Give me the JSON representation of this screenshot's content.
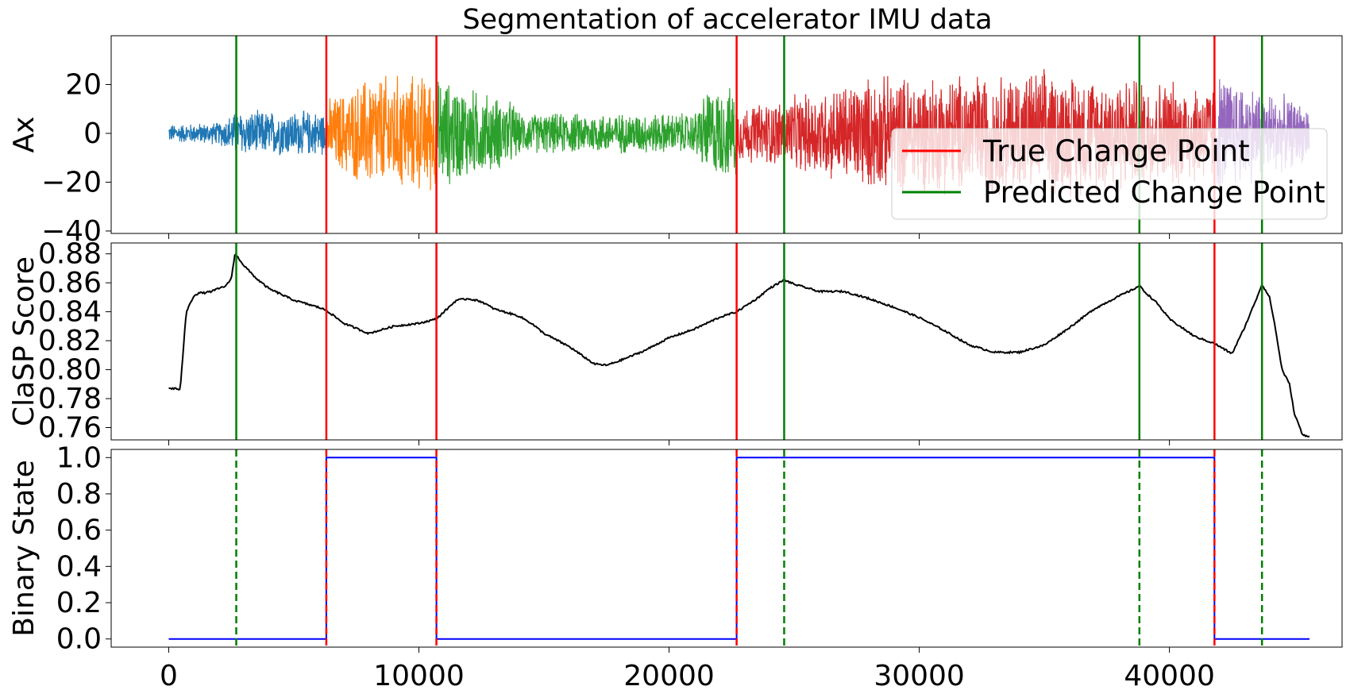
{
  "chart_data": [
    {
      "type": "line",
      "title": "Segmentation of accelerator IMU data",
      "ylabel": "Ax",
      "xlim": [
        -2300,
        46900
      ],
      "ylim": [
        -41,
        40
      ],
      "yticks": [
        20,
        0,
        -20,
        -40
      ],
      "ytick_labels": [
        "20",
        "0",
        "−20",
        "−40"
      ],
      "segments": [
        {
          "x_start": 0,
          "x_end": 6300,
          "color": "#1f77b4",
          "amplitude": [
            [
              0,
              4
            ],
            [
              2000,
              5
            ],
            [
              2700,
              10
            ],
            [
              6300,
              10
            ]
          ]
        },
        {
          "x_start": 6300,
          "x_end": 10700,
          "color": "#ff7f0e",
          "amplitude": [
            [
              6300,
              15
            ],
            [
              7300,
              20
            ],
            [
              8000,
              26
            ],
            [
              10700,
              26
            ]
          ]
        },
        {
          "x_start": 10700,
          "x_end": 22700,
          "color": "#2ca02c",
          "amplitude": [
            [
              10700,
              25
            ],
            [
              13800,
              14
            ],
            [
              14000,
              9
            ],
            [
              21000,
              9
            ],
            [
              21500,
              20
            ],
            [
              22700,
              20
            ]
          ]
        },
        {
          "x_start": 22700,
          "x_end": 41800,
          "color": "#d62728",
          "amplitude": [
            [
              22700,
              12
            ],
            [
              24500,
              15
            ],
            [
              28000,
              25
            ],
            [
              35000,
              28
            ],
            [
              41800,
              22
            ]
          ]
        },
        {
          "x_start": 41800,
          "x_end": 45600,
          "color": "#9467bd",
          "amplitude": [
            [
              41800,
              28
            ],
            [
              43800,
              20
            ],
            [
              45600,
              12
            ]
          ]
        }
      ],
      "true_change_points": [
        6300,
        10700,
        22700,
        41800
      ],
      "predicted_change_points": [
        2700,
        24600,
        38800,
        43700
      ],
      "legend": {
        "position": "lower-right",
        "entries": [
          {
            "label": "True Change Point",
            "color": "#ff0000"
          },
          {
            "label": "Predicted Change Point",
            "color": "#008000"
          }
        ]
      }
    },
    {
      "type": "line",
      "ylabel": "ClaSP Score",
      "xlim": [
        -2300,
        46900
      ],
      "ylim": [
        0.7515,
        0.8875
      ],
      "yticks": [
        0.88,
        0.86,
        0.84,
        0.82,
        0.8,
        0.78,
        0.76
      ],
      "ytick_labels": [
        "0.88",
        "0.86",
        "0.84",
        "0.82",
        "0.80",
        "0.78",
        "0.76"
      ],
      "series": [
        {
          "color": "#000000",
          "x": [
            0,
            300,
            450,
            500,
            700,
            900,
            1000,
            1200,
            1400,
            1700,
            2000,
            2300,
            2500,
            2650,
            2750,
            3000,
            3500,
            4000,
            5000,
            6000,
            6300,
            7000,
            8000,
            9000,
            10000,
            10700,
            11500,
            12000,
            12500,
            13000,
            14000,
            14500,
            15000,
            16000,
            17000,
            17500,
            18000,
            19000,
            20000,
            21000,
            22000,
            22700,
            23500,
            24000,
            24600,
            25000,
            26000,
            27000,
            28000,
            29000,
            30000,
            31000,
            32000,
            33000,
            34000,
            35000,
            36000,
            37000,
            38000,
            38500,
            38800,
            39000,
            39500,
            40000,
            40500,
            41000,
            41800,
            42500,
            43000,
            43500,
            43700,
            44000,
            44200,
            44500,
            44800,
            45000,
            45200,
            45300,
            45600
          ],
          "y": [
            0.787,
            0.787,
            0.786,
            0.795,
            0.84,
            0.847,
            0.851,
            0.853,
            0.853,
            0.854,
            0.856,
            0.858,
            0.863,
            0.88,
            0.878,
            0.872,
            0.863,
            0.856,
            0.848,
            0.843,
            0.841,
            0.832,
            0.825,
            0.83,
            0.832,
            0.835,
            0.848,
            0.849,
            0.847,
            0.842,
            0.837,
            0.832,
            0.825,
            0.816,
            0.804,
            0.803,
            0.806,
            0.813,
            0.822,
            0.828,
            0.836,
            0.84,
            0.849,
            0.856,
            0.862,
            0.859,
            0.854,
            0.854,
            0.849,
            0.843,
            0.836,
            0.827,
            0.817,
            0.812,
            0.812,
            0.817,
            0.829,
            0.842,
            0.851,
            0.855,
            0.858,
            0.854,
            0.846,
            0.835,
            0.829,
            0.823,
            0.818,
            0.811,
            0.829,
            0.85,
            0.859,
            0.85,
            0.832,
            0.8,
            0.79,
            0.769,
            0.761,
            0.755,
            0.754
          ]
        }
      ],
      "true_change_points": [
        6300,
        10700,
        22700,
        41800
      ],
      "predicted_change_points": [
        2700,
        24600,
        38800,
        43700
      ]
    },
    {
      "type": "line",
      "ylabel": "Binary State",
      "xlabel": "",
      "xlim": [
        -2300,
        46900
      ],
      "ylim": [
        -0.045,
        1.045
      ],
      "yticks": [
        1.0,
        0.8,
        0.6,
        0.4,
        0.2,
        0.0
      ],
      "ytick_labels": [
        "1.0",
        "0.8",
        "0.6",
        "0.4",
        "0.2",
        "0.0"
      ],
      "xticks": [
        0,
        10000,
        20000,
        30000,
        40000
      ],
      "xtick_labels": [
        "0",
        "10000",
        "20000",
        "30000",
        "40000"
      ],
      "series": [
        {
          "color": "#0000ff",
          "x": [
            0,
            6300,
            6300,
            10700,
            10700,
            22700,
            22700,
            41800,
            41800,
            45600
          ],
          "y": [
            0,
            0,
            1,
            1,
            0,
            0,
            1,
            1,
            0,
            0
          ]
        }
      ],
      "true_change_points": [
        6300,
        10700,
        22700,
        41800
      ],
      "predicted_change_points": [
        2700,
        24600,
        38800,
        43700
      ]
    }
  ]
}
